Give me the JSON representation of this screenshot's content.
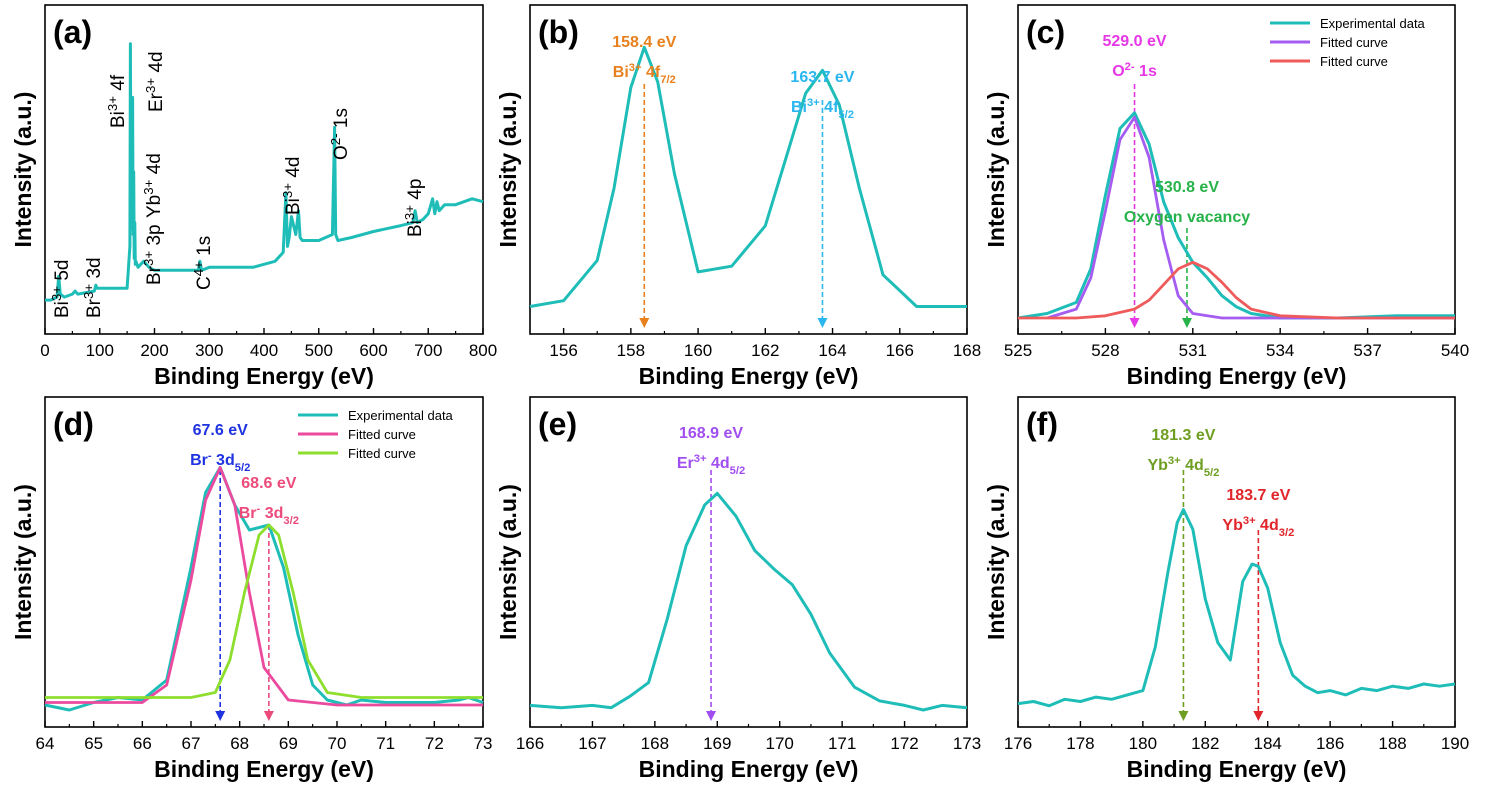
{
  "chart_data": [
    {
      "panel": "(a)",
      "type": "line",
      "xlabel": "Binding Energy (eV)",
      "ylabel": "Intensity (a.u.)",
      "xlim": [
        0,
        800
      ],
      "xticks": [
        0,
        100,
        200,
        300,
        400,
        500,
        600,
        700,
        800
      ],
      "ylim": [
        0,
        1
      ],
      "series": [
        {
          "color": "#1fbdb8",
          "x": [
            0,
            10,
            22,
            25,
            28,
            35,
            50,
            55,
            60,
            90,
            93,
            95,
            100,
            120,
            150,
            155,
            156,
            157,
            158,
            159,
            160,
            161,
            162,
            163,
            164,
            165,
            166,
            170,
            175,
            180,
            185,
            190,
            200,
            250,
            280,
            283,
            286,
            300,
            340,
            350,
            380,
            400,
            420,
            435,
            440,
            443,
            446,
            450,
            458,
            463,
            466,
            470,
            500,
            525,
            529,
            531,
            535,
            560,
            600,
            650,
            672,
            676,
            680,
            690,
            700,
            708,
            712,
            716,
            720,
            730,
            750,
            780,
            800
          ],
          "y": [
            0.04,
            0.04,
            0.05,
            0.12,
            0.06,
            0.05,
            0.06,
            0.07,
            0.06,
            0.07,
            0.09,
            0.08,
            0.08,
            0.08,
            0.08,
            0.22,
            0.9,
            0.35,
            0.62,
            0.28,
            0.72,
            0.26,
            0.47,
            0.18,
            0.3,
            0.16,
            0.17,
            0.15,
            0.16,
            0.17,
            0.16,
            0.15,
            0.14,
            0.14,
            0.14,
            0.17,
            0.14,
            0.15,
            0.15,
            0.15,
            0.15,
            0.16,
            0.17,
            0.2,
            0.4,
            0.22,
            0.25,
            0.32,
            0.26,
            0.34,
            0.25,
            0.24,
            0.24,
            0.26,
            0.62,
            0.26,
            0.24,
            0.25,
            0.27,
            0.29,
            0.3,
            0.34,
            0.3,
            0.31,
            0.33,
            0.38,
            0.33,
            0.37,
            0.34,
            0.36,
            0.36,
            0.38,
            0.37
          ]
        }
      ],
      "annotations": [
        {
          "text": "Bi³⁺ 5d"
        },
        {
          "text": "Br³⁺ 3d"
        },
        {
          "text": "Bi³⁺ 4f"
        },
        {
          "text": "Er³⁺ 4d"
        },
        {
          "text": "Br³⁺ 3p"
        },
        {
          "text": "Yb³⁺ 4d"
        },
        {
          "text": "C⁴⁺ 1s"
        },
        {
          "text": "Bi³⁺ 4d"
        },
        {
          "text": "O²⁻ 1s"
        },
        {
          "text": "Bi³⁺ 4p"
        }
      ]
    },
    {
      "panel": "(b)",
      "type": "line",
      "xlabel": "Binding Energy (eV)",
      "ylabel": "Intensity (a.u.)",
      "xlim": [
        155,
        168
      ],
      "xticks": [
        156,
        158,
        160,
        162,
        164,
        166,
        168
      ],
      "ylim": [
        0,
        1
      ],
      "series": [
        {
          "color": "#1fbdb8",
          "x": [
            155,
            156,
            157,
            157.5,
            158,
            158.4,
            158.8,
            159.3,
            160,
            161,
            162,
            162.6,
            163.2,
            163.7,
            164.2,
            164.8,
            165.5,
            166.5,
            168
          ],
          "y": [
            0.04,
            0.06,
            0.2,
            0.45,
            0.8,
            0.94,
            0.82,
            0.5,
            0.16,
            0.18,
            0.32,
            0.55,
            0.78,
            0.86,
            0.74,
            0.45,
            0.15,
            0.04,
            0.04
          ]
        }
      ],
      "peaks": [
        {
          "x": 158.4,
          "value": "158.4 eV",
          "label": "Bi³⁺ 4f7/2",
          "color": "#e8801e"
        },
        {
          "x": 163.7,
          "value": "163.7 eV",
          "label": "Bi³⁺ 4f5/2",
          "color": "#2ab6ef"
        }
      ]
    },
    {
      "panel": "(c)",
      "type": "line",
      "xlabel": "Binding Energy (eV)",
      "ylabel": "Intensity (a.u.)",
      "xlim": [
        525,
        540
      ],
      "xticks": [
        525,
        528,
        531,
        534,
        537,
        540
      ],
      "ylim": [
        0,
        1
      ],
      "legend": [
        "Experimental data",
        "Fitted curve",
        "Fitted curve"
      ],
      "series": [
        {
          "name": "Experimental data",
          "color": "#1fbdb8",
          "x": [
            525,
            526,
            527,
            527.5,
            528,
            528.5,
            529,
            529.5,
            530,
            530.5,
            531,
            531.5,
            532,
            532.5,
            533,
            534,
            536,
            538,
            540
          ],
          "y": [
            0.0,
            0.02,
            0.07,
            0.22,
            0.55,
            0.85,
            0.92,
            0.78,
            0.52,
            0.36,
            0.25,
            0.18,
            0.1,
            0.05,
            0.02,
            0.0,
            0.0,
            0.01,
            0.01
          ]
        },
        {
          "name": "Fitted curve",
          "color": "#a45df0",
          "x": [
            526,
            527,
            527.5,
            528,
            528.5,
            529,
            529.5,
            530,
            530.5,
            531,
            532,
            534,
            540
          ],
          "y": [
            0.0,
            0.04,
            0.18,
            0.48,
            0.8,
            0.9,
            0.72,
            0.35,
            0.1,
            0.02,
            0.0,
            0.0,
            0.0
          ]
        },
        {
          "name": "Fitted curve",
          "color": "#ef5b5b",
          "x": [
            525,
            527,
            528,
            529,
            529.5,
            530,
            530.5,
            531,
            531.5,
            532,
            532.5,
            533,
            534,
            536,
            540
          ],
          "y": [
            0.0,
            0.0,
            0.01,
            0.04,
            0.08,
            0.15,
            0.22,
            0.25,
            0.22,
            0.16,
            0.09,
            0.04,
            0.01,
            0.0,
            0.0
          ]
        }
      ],
      "peaks": [
        {
          "x": 529.0,
          "value": "529.0 eV",
          "label": "O²⁻ 1s",
          "color": "#e637e6"
        },
        {
          "x": 530.8,
          "value": "530.8 eV",
          "label": "Oxygen vacancy",
          "color": "#27b24a"
        }
      ]
    },
    {
      "panel": "(d)",
      "type": "line",
      "xlabel": "Binding Energy (eV)",
      "ylabel": "Intensity (a.u.)",
      "xlim": [
        64,
        73
      ],
      "xticks": [
        64,
        65,
        66,
        67,
        68,
        69,
        70,
        71,
        72,
        73
      ],
      "ylim": [
        0,
        1
      ],
      "legend": [
        "Experimental data",
        "Fitted curve",
        "Fitted curve"
      ],
      "series": [
        {
          "name": "Experimental data",
          "color": "#1fbdb8",
          "x": [
            64,
            64.5,
            65,
            65.5,
            66,
            66.5,
            67,
            67.3,
            67.6,
            67.9,
            68.2,
            68.6,
            68.9,
            69.2,
            69.5,
            69.8,
            70.2,
            70.5,
            71,
            71.5,
            72,
            72.5,
            72.7,
            73
          ],
          "y": [
            0.0,
            -0.02,
            0.01,
            0.03,
            0.02,
            0.1,
            0.55,
            0.85,
            0.95,
            0.8,
            0.7,
            0.72,
            0.55,
            0.28,
            0.08,
            0.02,
            0.0,
            0.02,
            0.01,
            0.01,
            0.01,
            0.02,
            0.03,
            0.01
          ]
        },
        {
          "name": "Fitted curve",
          "color": "#ec4a9e",
          "x": [
            64,
            66,
            66.5,
            67,
            67.3,
            67.6,
            67.9,
            68.2,
            68.5,
            69,
            70,
            73
          ],
          "y": [
            0.01,
            0.01,
            0.08,
            0.5,
            0.82,
            0.95,
            0.8,
            0.45,
            0.15,
            0.02,
            0.0,
            0.0
          ]
        },
        {
          "name": "Fitted curve",
          "color": "#8ede2e",
          "x": [
            64,
            67,
            67.5,
            67.8,
            68.1,
            68.4,
            68.6,
            68.8,
            69.1,
            69.4,
            69.8,
            70.5,
            73
          ],
          "y": [
            0.03,
            0.03,
            0.05,
            0.18,
            0.45,
            0.68,
            0.72,
            0.68,
            0.45,
            0.18,
            0.05,
            0.03,
            0.03
          ]
        }
      ],
      "peaks": [
        {
          "x": 67.6,
          "value": "67.6 eV",
          "label": "Br⁻ 3d5/2",
          "color": "#1f33e0"
        },
        {
          "x": 68.6,
          "value": "68.6 eV",
          "label": "Br⁻ 3d3/2",
          "color": "#ec4a7b"
        }
      ]
    },
    {
      "panel": "(e)",
      "type": "line",
      "xlabel": "Binding Energy (eV)",
      "ylabel": "Intensity (a.u.)",
      "xlim": [
        166,
        173
      ],
      "xticks": [
        166,
        167,
        168,
        169,
        170,
        171,
        172,
        173
      ],
      "ylim": [
        0,
        1
      ],
      "series": [
        {
          "color": "#1fbdb8",
          "x": [
            166,
            166.5,
            167,
            167.3,
            167.6,
            167.9,
            168.2,
            168.5,
            168.8,
            169,
            169.3,
            169.6,
            169.9,
            170.2,
            170.5,
            170.8,
            171.2,
            171.6,
            172,
            172.3,
            172.6,
            173
          ],
          "y": [
            0.02,
            0.01,
            0.02,
            0.01,
            0.06,
            0.12,
            0.4,
            0.72,
            0.9,
            0.95,
            0.85,
            0.7,
            0.62,
            0.55,
            0.42,
            0.25,
            0.1,
            0.04,
            0.02,
            0.0,
            0.02,
            0.01
          ]
        }
      ],
      "peaks": [
        {
          "x": 168.9,
          "value": "168.9 eV",
          "label": "Er³⁺ 4d5/2",
          "color": "#a14ef0"
        }
      ]
    },
    {
      "panel": "(f)",
      "type": "line",
      "xlabel": "Binding Energy (eV)",
      "ylabel": "Intensity (a.u.)",
      "xlim": [
        176,
        190
      ],
      "xticks": [
        176,
        178,
        180,
        182,
        184,
        186,
        188,
        190
      ],
      "ylim": [
        0,
        1
      ],
      "series": [
        {
          "color": "#1fbdb8",
          "x": [
            176,
            176.5,
            177,
            177.5,
            178,
            178.5,
            179,
            179.5,
            180,
            180.4,
            180.8,
            181.1,
            181.3,
            181.6,
            182,
            182.4,
            182.8,
            183.2,
            183.5,
            183.7,
            184,
            184.4,
            184.8,
            185.2,
            185.6,
            186,
            186.5,
            187,
            187.5,
            188,
            188.5,
            189,
            189.5,
            190
          ],
          "y": [
            0.02,
            0.03,
            0.01,
            0.04,
            0.03,
            0.05,
            0.04,
            0.06,
            0.08,
            0.28,
            0.62,
            0.85,
            0.91,
            0.82,
            0.5,
            0.3,
            0.22,
            0.58,
            0.66,
            0.65,
            0.55,
            0.3,
            0.15,
            0.1,
            0.07,
            0.08,
            0.06,
            0.09,
            0.08,
            0.1,
            0.09,
            0.11,
            0.1,
            0.11
          ]
        }
      ],
      "peaks": [
        {
          "x": 181.3,
          "value": "181.3 eV",
          "label": "Yb³⁺ 4d5/2",
          "color": "#6e9e22"
        },
        {
          "x": 183.7,
          "value": "183.7 eV",
          "label": "Yb³⁺ 4d3/2",
          "color": "#e0262a"
        }
      ]
    }
  ]
}
